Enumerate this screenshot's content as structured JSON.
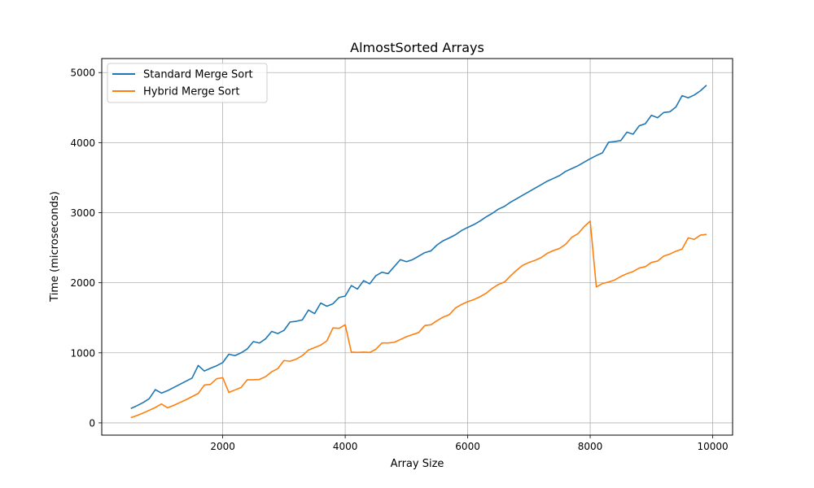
{
  "chart_data": {
    "type": "line",
    "title": "AlmostSorted Arrays",
    "xlabel": "Array Size",
    "ylabel": "Time (microseconds)",
    "xlim": [
      25,
      10325
    ],
    "ylim": [
      -175,
      5200
    ],
    "xticks": [
      2000,
      4000,
      6000,
      8000,
      10000
    ],
    "yticks": [
      0,
      1000,
      2000,
      3000,
      4000,
      5000
    ],
    "grid": true,
    "legend_position": "upper-left",
    "x": [
      500,
      600,
      700,
      800,
      900,
      1000,
      1100,
      1200,
      1300,
      1400,
      1500,
      1600,
      1700,
      1800,
      1900,
      2000,
      2100,
      2200,
      2300,
      2400,
      2500,
      2600,
      2700,
      2800,
      2900,
      3000,
      3100,
      3200,
      3300,
      3400,
      3500,
      3600,
      3700,
      3800,
      3900,
      4000,
      4100,
      4200,
      4300,
      4400,
      4500,
      4600,
      4700,
      4800,
      4900,
      5000,
      5100,
      5200,
      5300,
      5400,
      5500,
      5600,
      5700,
      5800,
      5900,
      6000,
      6100,
      6200,
      6300,
      6400,
      6500,
      6600,
      6700,
      6800,
      6900,
      7000,
      7100,
      7200,
      7300,
      7400,
      7500,
      7600,
      7700,
      7800,
      7900,
      8000,
      8100,
      8200,
      8300,
      8400,
      8500,
      8600,
      8700,
      8800,
      8900,
      9000,
      9100,
      9200,
      9300,
      9400,
      9500,
      9600,
      9700,
      9800,
      9900
    ],
    "series": [
      {
        "name": "Standard Merge Sort",
        "color": "#1f77b4",
        "values": [
          205,
          245,
          290,
          345,
          475,
          425,
          460,
          505,
          550,
          595,
          640,
          820,
          740,
          780,
          815,
          860,
          980,
          960,
          1000,
          1055,
          1160,
          1140,
          1200,
          1305,
          1275,
          1320,
          1440,
          1450,
          1470,
          1610,
          1560,
          1710,
          1665,
          1700,
          1790,
          1810,
          1960,
          1910,
          2030,
          1985,
          2100,
          2150,
          2130,
          2230,
          2330,
          2300,
          2330,
          2380,
          2430,
          2455,
          2540,
          2600,
          2640,
          2685,
          2745,
          2790,
          2830,
          2880,
          2940,
          2990,
          3050,
          3090,
          3150,
          3200,
          3250,
          3300,
          3350,
          3400,
          3450,
          3490,
          3530,
          3590,
          3630,
          3670,
          3720,
          3770,
          3815,
          3855,
          4005,
          4015,
          4030,
          4150,
          4120,
          4240,
          4270,
          4390,
          4355,
          4430,
          4440,
          4510,
          4670,
          4640,
          4680,
          4740,
          4820
        ]
      },
      {
        "name": "Hybrid Merge Sort",
        "color": "#ff7f0e",
        "values": [
          75,
          105,
          140,
          180,
          220,
          270,
          215,
          250,
          290,
          330,
          375,
          420,
          540,
          550,
          630,
          645,
          435,
          470,
          505,
          615,
          615,
          620,
          660,
          730,
          775,
          890,
          880,
          910,
          960,
          1040,
          1075,
          1110,
          1170,
          1355,
          1350,
          1400,
          1010,
          1005,
          1010,
          1005,
          1050,
          1140,
          1140,
          1150,
          1190,
          1230,
          1260,
          1290,
          1390,
          1400,
          1460,
          1510,
          1545,
          1640,
          1690,
          1730,
          1760,
          1800,
          1850,
          1920,
          1975,
          2010,
          2100,
          2180,
          2250,
          2290,
          2320,
          2360,
          2420,
          2460,
          2490,
          2550,
          2650,
          2700,
          2800,
          2880,
          1940,
          1990,
          2010,
          2040,
          2090,
          2130,
          2160,
          2210,
          2230,
          2290,
          2310,
          2380,
          2410,
          2450,
          2480,
          2640,
          2620,
          2680,
          2690
        ]
      }
    ]
  }
}
